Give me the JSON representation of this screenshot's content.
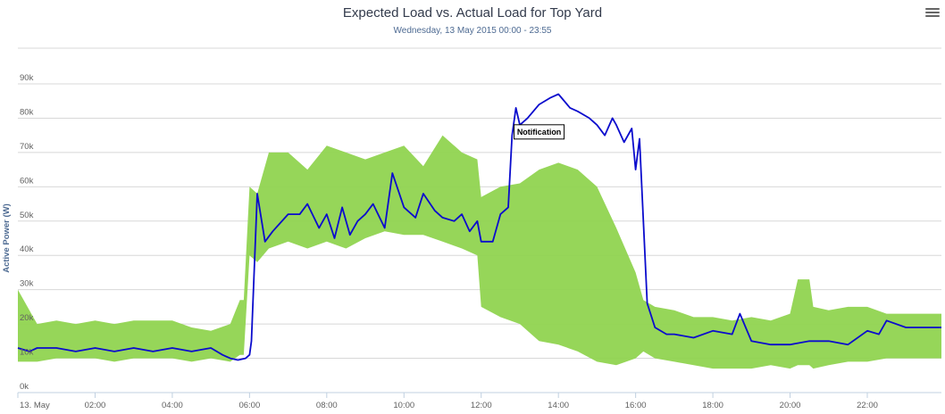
{
  "header": {
    "title": "Expected Load vs. Actual Load for Top Yard",
    "subtitle": "Wednesday, 13 May 2015 00:00 - 23:55",
    "menu_icon": "hamburger-icon"
  },
  "chart_data": {
    "type": "area",
    "title": "Expected Load vs. Actual Load for Top Yard",
    "subtitle": "Wednesday, 13 May 2015 00:00 - 23:55",
    "xlabel": "",
    "ylabel": "Active Power (W)",
    "x_unit": "hour of day",
    "xlim": [
      0,
      23.92
    ],
    "ylim": [
      0,
      90000
    ],
    "y_ticks": [
      0,
      10000,
      20000,
      30000,
      40000,
      50000,
      60000,
      70000,
      80000,
      90000
    ],
    "y_tick_labels": [
      "0k",
      "10k",
      "20k",
      "30k",
      "40k",
      "50k",
      "60k",
      "70k",
      "80k",
      "90k"
    ],
    "x_ticks": [
      0,
      2,
      4,
      6,
      8,
      10,
      12,
      14,
      16,
      18,
      20,
      22
    ],
    "x_tick_labels": [
      "13. May",
      "02:00",
      "04:00",
      "06:00",
      "08:00",
      "10:00",
      "12:00",
      "14:00",
      "16:00",
      "18:00",
      "20:00",
      "22:00"
    ],
    "grid": true,
    "legend": "none",
    "colors": {
      "band": "#90d450",
      "line": "#0b0ccd",
      "grid": "#d8d8d8"
    },
    "band": {
      "x": [
        0,
        0.5,
        1,
        1.5,
        2,
        2.5,
        3,
        3.5,
        4,
        4.5,
        5,
        5.5,
        5.75,
        5.85,
        6,
        6.2,
        6.5,
        7,
        7.5,
        8,
        8.5,
        9,
        9.5,
        10,
        10.5,
        11,
        11.5,
        11.9,
        12,
        12.5,
        13,
        13.5,
        14,
        14.5,
        15,
        15.5,
        16,
        16.2,
        16.5,
        17,
        17.5,
        18,
        18.5,
        19,
        19.5,
        20,
        20.2,
        20.5,
        20.6,
        21,
        21.5,
        22,
        22.5,
        23,
        23.5,
        23.92
      ],
      "upper": [
        30000,
        20000,
        21000,
        20000,
        21000,
        20000,
        21000,
        21000,
        21000,
        19000,
        18000,
        20000,
        27000,
        27000,
        60000,
        58000,
        70000,
        70000,
        65000,
        72000,
        70000,
        68000,
        70000,
        72000,
        66000,
        75000,
        70000,
        68000,
        57000,
        60000,
        61000,
        65000,
        67000,
        65000,
        60000,
        48000,
        35000,
        27000,
        25000,
        24000,
        22000,
        22000,
        21000,
        22000,
        21000,
        23000,
        33000,
        33000,
        25000,
        24000,
        25000,
        25000,
        23000,
        23000,
        23000,
        23000
      ],
      "lower": [
        9000,
        9000,
        10000,
        10000,
        10000,
        9000,
        10000,
        10000,
        10000,
        9000,
        10000,
        9000,
        11000,
        11000,
        40000,
        38000,
        42000,
        44000,
        42000,
        44000,
        42000,
        45000,
        47000,
        46000,
        46000,
        44000,
        42000,
        40000,
        25000,
        22000,
        20000,
        15000,
        14000,
        12000,
        9000,
        8000,
        10000,
        12000,
        10000,
        9000,
        8000,
        7000,
        7000,
        7000,
        8000,
        7000,
        8000,
        8000,
        7000,
        8000,
        9000,
        9000,
        10000,
        10000,
        10000,
        10000
      ]
    },
    "series": [
      {
        "x": [
          0,
          0.3,
          0.5,
          1,
          1.5,
          2,
          2.5,
          3,
          3.5,
          4,
          4.5,
          5,
          5.3,
          5.5,
          5.7,
          5.9,
          6,
          6.05,
          6.2,
          6.4,
          6.6,
          7,
          7.3,
          7.5,
          7.8,
          8,
          8.2,
          8.4,
          8.6,
          8.8,
          9,
          9.2,
          9.5,
          9.7,
          10,
          10.3,
          10.5,
          10.8,
          11,
          11.3,
          11.5,
          11.7,
          11.9,
          12,
          12.3,
          12.5,
          12.7,
          12.8,
          12.9,
          13,
          13.2,
          13.5,
          13.8,
          14,
          14.3,
          14.5,
          14.8,
          15,
          15.2,
          15.4,
          15.5,
          15.7,
          15.9,
          16,
          16.1,
          16.3,
          16.5,
          16.8,
          17,
          17.5,
          18,
          18.5,
          18.7,
          19,
          19.5,
          20,
          20.5,
          21,
          21.5,
          22,
          22.3,
          22.5,
          23,
          23.5,
          23.92
        ],
        "values": [
          13000,
          12000,
          13000,
          13000,
          12000,
          13000,
          12000,
          13000,
          12000,
          13000,
          12000,
          13000,
          11000,
          10000,
          9500,
          10000,
          11000,
          15000,
          58000,
          44000,
          47000,
          52000,
          52000,
          55000,
          48000,
          52000,
          45000,
          54000,
          46000,
          50000,
          52000,
          55000,
          48000,
          64000,
          54000,
          51000,
          58000,
          53000,
          51000,
          50000,
          52000,
          47000,
          50000,
          44000,
          44000,
          52000,
          54000,
          75000,
          83000,
          78000,
          80000,
          84000,
          86000,
          87000,
          83000,
          82000,
          80000,
          78000,
          75000,
          80000,
          78000,
          73000,
          77000,
          65000,
          74000,
          26000,
          19000,
          17000,
          17000,
          16000,
          18000,
          17000,
          23000,
          15000,
          14000,
          14000,
          15000,
          15000,
          14000,
          18000,
          17000,
          21000,
          19000,
          19000,
          19000
        ]
      }
    ],
    "annotations": [
      {
        "text": "Notification",
        "x": 13.5,
        "y": 76000
      }
    ]
  }
}
